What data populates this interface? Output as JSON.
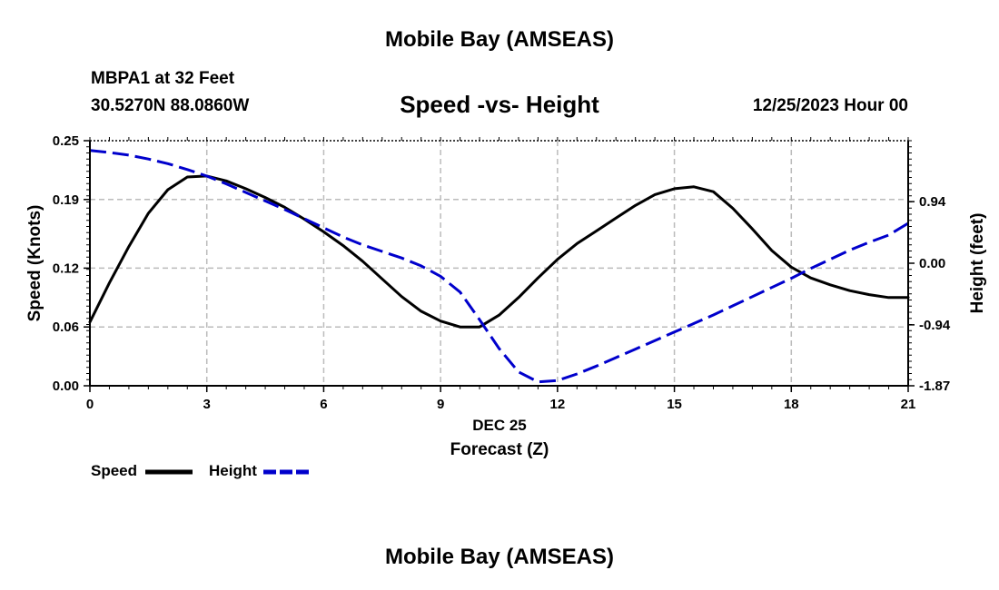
{
  "header": {
    "main_title": "Mobile Bay (AMSEAS)",
    "station": "MBPA1 at 32 Feet",
    "coords": "30.5270N  88.0860W",
    "chart_title": "Speed -vs- Height",
    "date": "12/25/2023 Hour 00"
  },
  "footer": {
    "repeat_title": "Mobile Bay (AMSEAS)"
  },
  "legend": {
    "speed_label": "Speed",
    "height_label": "Height"
  },
  "colors": {
    "speed": "#000000",
    "height": "#0000cc",
    "grid": "#bbbbbb"
  },
  "chart_data": {
    "type": "line",
    "title": "Speed -vs- Height",
    "xlabel": "Forecast (Z)",
    "xlabel_date": "DEC 25",
    "ylabel": "Speed (Knots)",
    "y2label": "Height (feet)",
    "xlim": [
      0,
      21
    ],
    "ylim": [
      0,
      0.25
    ],
    "y2lim": [
      -1.87,
      1.87
    ],
    "x_ticks": [
      "0",
      "3",
      "6",
      "9",
      "12",
      "15",
      "18",
      "21"
    ],
    "y_ticks": [
      "0.00",
      "0.06",
      "0.12",
      "0.19",
      "0.25"
    ],
    "y2_ticks": [
      "-1.87",
      "-0.94",
      "0.00",
      "0.94"
    ],
    "grid": true,
    "legend_position": "bottom-left",
    "series": [
      {
        "name": "Speed",
        "axis": "left",
        "style": "solid",
        "x": [
          0,
          0.5,
          1,
          1.5,
          2,
          2.5,
          3,
          3.5,
          4,
          4.5,
          5,
          5.5,
          6,
          6.5,
          7,
          7.5,
          8,
          8.5,
          9,
          9.5,
          10,
          10.5,
          11,
          11.5,
          12,
          12.5,
          13,
          13.5,
          14,
          14.5,
          15,
          15.5,
          16,
          16.5,
          17,
          17.5,
          18,
          18.5,
          19,
          19.5,
          20,
          20.5,
          21
        ],
        "values": [
          0.065,
          0.105,
          0.142,
          0.176,
          0.2,
          0.213,
          0.214,
          0.209,
          0.201,
          0.192,
          0.182,
          0.17,
          0.157,
          0.143,
          0.127,
          0.109,
          0.091,
          0.076,
          0.066,
          0.06,
          0.06,
          0.072,
          0.09,
          0.11,
          0.129,
          0.145,
          0.158,
          0.171,
          0.184,
          0.195,
          0.201,
          0.203,
          0.198,
          0.181,
          0.16,
          0.138,
          0.121,
          0.11,
          0.103,
          0.097,
          0.093,
          0.09,
          0.09
        ]
      },
      {
        "name": "Height",
        "axis": "right",
        "style": "dashed",
        "x": [
          0,
          0.5,
          1,
          1.5,
          2,
          2.5,
          3,
          3.5,
          4,
          4.5,
          5,
          5.5,
          6,
          6.5,
          7,
          7.5,
          8,
          8.5,
          9,
          9.5,
          10,
          10.5,
          11,
          11.5,
          12,
          12.5,
          13,
          13.5,
          14,
          14.5,
          15,
          15.5,
          16,
          16.5,
          17,
          17.5,
          18,
          18.5,
          19,
          19.5,
          20,
          20.5,
          21
        ],
        "values": [
          1.72,
          1.69,
          1.65,
          1.59,
          1.52,
          1.43,
          1.33,
          1.21,
          1.08,
          0.95,
          0.82,
          0.68,
          0.54,
          0.4,
          0.28,
          0.18,
          0.08,
          -0.04,
          -0.2,
          -0.44,
          -0.86,
          -1.3,
          -1.66,
          -1.81,
          -1.79,
          -1.69,
          -1.57,
          -1.44,
          -1.31,
          -1.18,
          -1.05,
          -0.92,
          -0.79,
          -0.65,
          -0.51,
          -0.37,
          -0.23,
          -0.08,
          0.06,
          0.2,
          0.32,
          0.43,
          0.61
        ]
      }
    ]
  }
}
